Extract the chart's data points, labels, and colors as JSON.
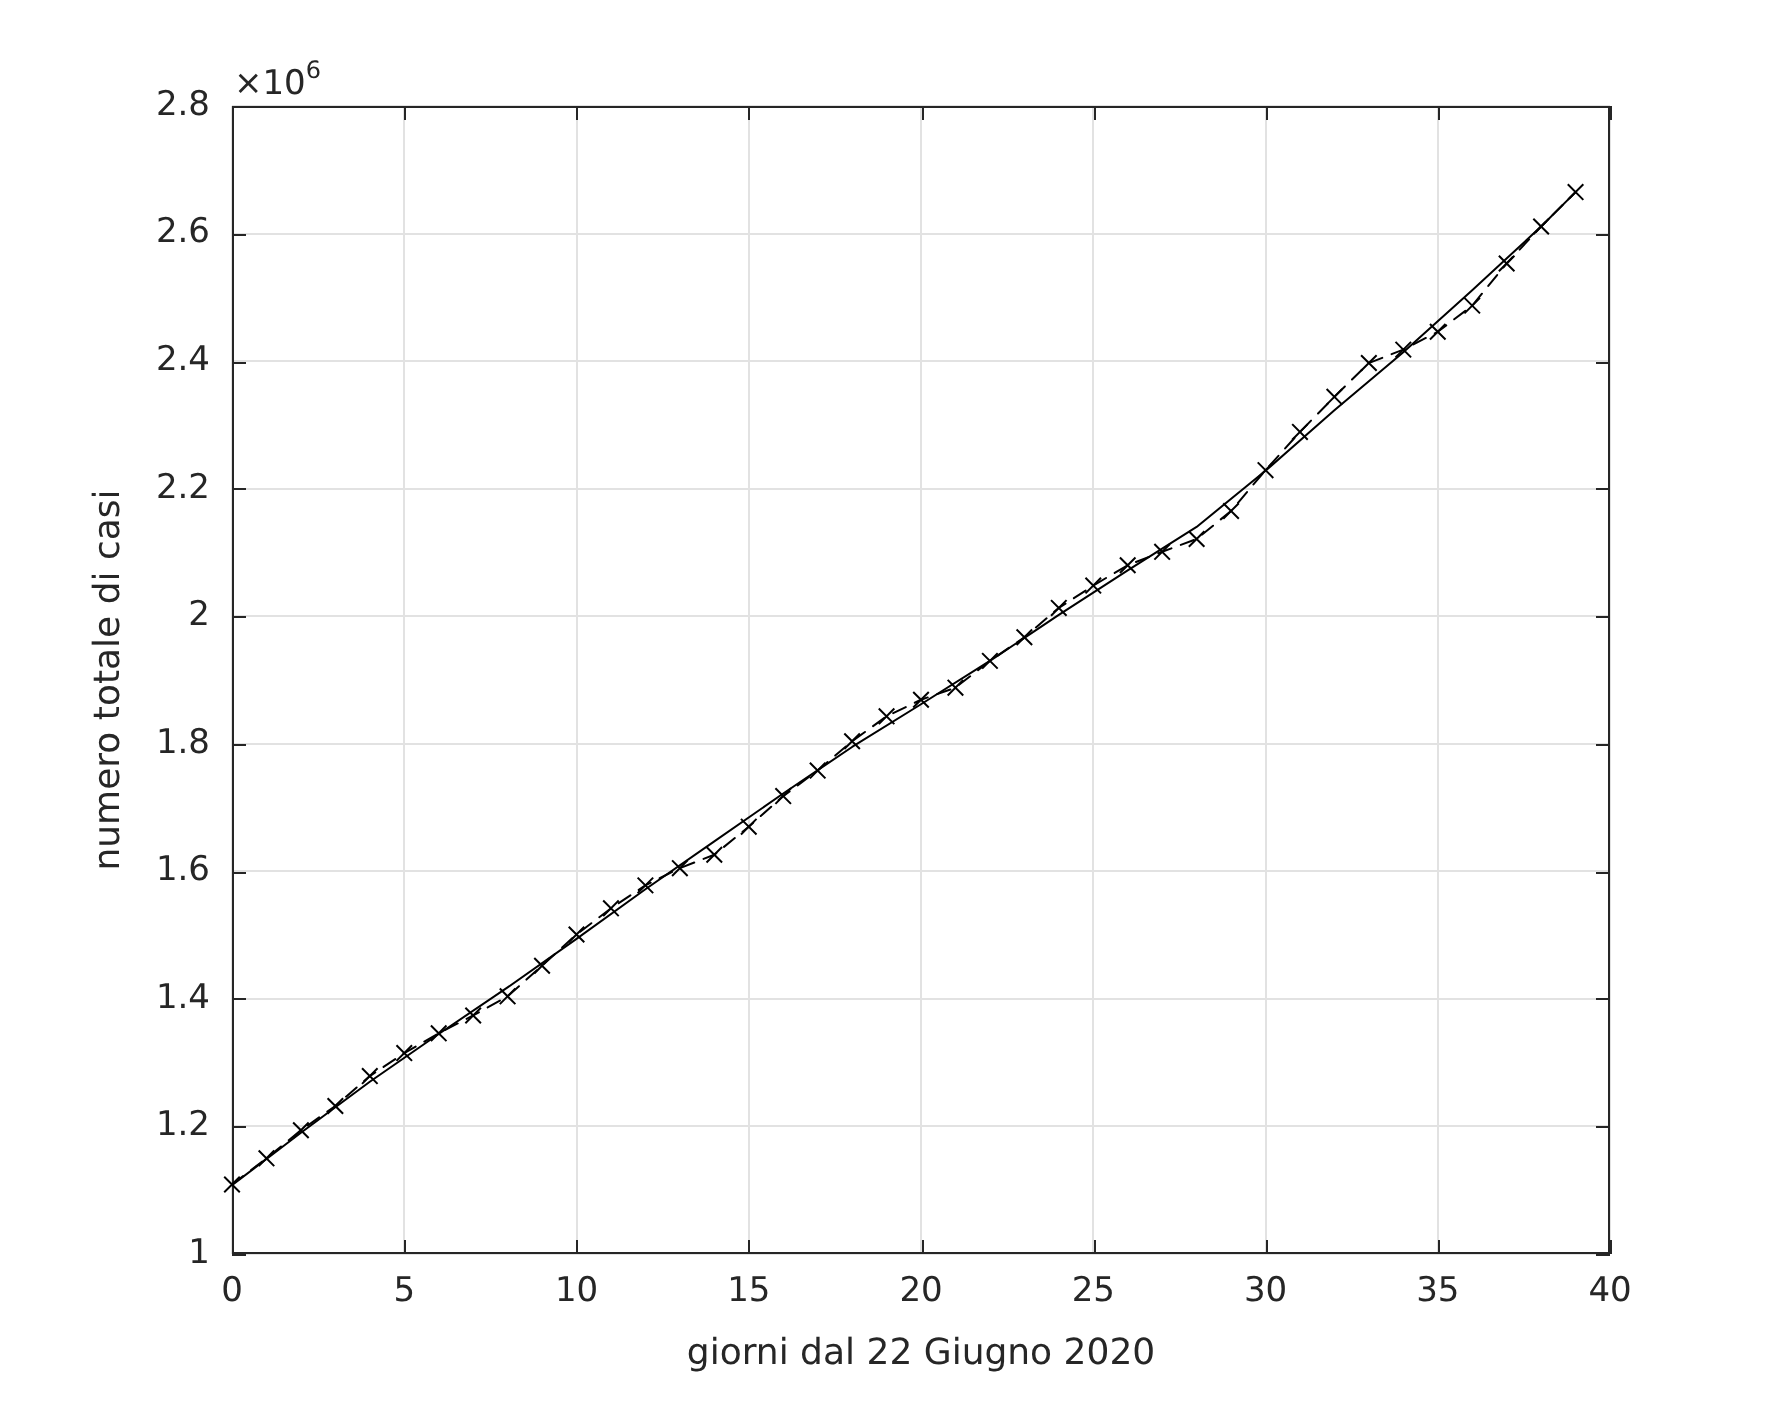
{
  "chart_data": {
    "type": "line",
    "xlabel": "giorni dal 22 Giugno 2020",
    "ylabel": "numero totale di casi",
    "annotations": [
      "×10$^{6}$"
    ],
    "x": [
      0,
      1,
      2,
      3,
      4,
      5,
      6,
      7,
      8,
      9,
      10,
      11,
      12,
      13,
      14,
      15,
      16,
      17,
      18,
      19,
      20,
      21,
      22,
      23,
      24,
      25,
      26,
      27,
      28,
      29,
      30,
      31,
      32,
      33,
      34,
      35,
      36,
      37,
      38,
      39
    ],
    "series": [
      {
        "color": "#000000",
        "marker": "cross",
        "line_style": "dashed",
        "values": [
          1.109,
          1.15,
          1.194,
          1.232,
          1.279,
          1.315,
          1.346,
          1.374,
          1.404,
          1.452,
          1.501,
          1.542,
          1.578,
          1.605,
          1.626,
          1.67,
          1.718,
          1.758,
          1.804,
          1.843,
          1.869,
          1.888,
          1.93,
          1.967,
          2.013,
          2.048,
          2.08,
          2.101,
          2.121,
          2.165,
          2.229,
          2.289,
          2.344,
          2.397,
          2.418,
          2.446,
          2.487,
          2.553,
          2.611,
          2.665
        ]
      },
      {
        "color": "#000000",
        "marker": "none",
        "line_style": "solid",
        "x": [
          0,
          2,
          4,
          6,
          8,
          10,
          12,
          14,
          16,
          18,
          20,
          22,
          24,
          26,
          28,
          30,
          32,
          34,
          36,
          38,
          39
        ],
        "values": [
          1.108,
          1.19,
          1.27,
          1.345,
          1.418,
          1.494,
          1.572,
          1.647,
          1.722,
          1.795,
          1.862,
          1.93,
          2.002,
          2.072,
          2.14,
          2.228,
          2.323,
          2.414,
          2.511,
          2.611,
          2.665
        ]
      }
    ],
    "xlim": [
      0,
      40
    ],
    "ylim": [
      1,
      2.8
    ],
    "xticks": [
      0,
      5,
      10,
      15,
      20,
      25,
      30,
      35,
      40
    ],
    "yticks": [
      1,
      1.2,
      1.4,
      1.6,
      1.8,
      2,
      2.2,
      2.4,
      2.6,
      2.8
    ],
    "grid": true
  }
}
